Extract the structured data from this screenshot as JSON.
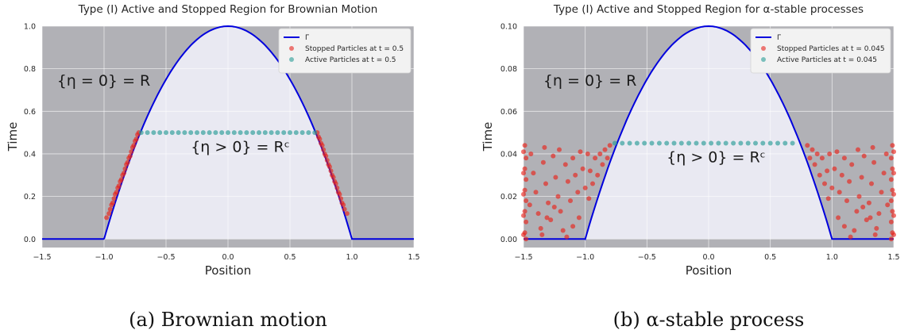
{
  "chart_data": [
    {
      "type": "scatter",
      "title": "Type (I) Active and Stopped Region for Brownian Motion",
      "xlabel": "Position",
      "ylabel": "Time",
      "xlim": [
        -1.5,
        1.5
      ],
      "ylim": [
        -0.04,
        1.0
      ],
      "x_ticks": [
        -1.5,
        -1.0,
        -0.5,
        0.0,
        0.5,
        1.0,
        1.5
      ],
      "x_tick_labels": [
        "−1.5",
        "−1.0",
        "−0.5",
        "0.0",
        "0.5",
        "1.0",
        "1.5"
      ],
      "y_ticks": [
        0.0,
        0.2,
        0.4,
        0.6,
        0.8,
        1.0
      ],
      "y_tick_labels": [
        "0.0",
        "0.2",
        "0.4",
        "0.6",
        "0.8",
        "1.0"
      ],
      "grid": true,
      "legend_position": "top-right",
      "boundary": {
        "name": "Γ",
        "color": "#0000dd",
        "peak": 1.0,
        "support": [
          -1.0,
          1.0
        ]
      },
      "series": [
        {
          "name": "Stopped Particles at t = 0.5",
          "color": "#e8231c",
          "t": 0.5,
          "points": [
            [
              -0.98,
              0.1
            ],
            [
              -0.96,
              0.12
            ],
            [
              -0.95,
              0.14
            ],
            [
              -0.94,
              0.16
            ],
            [
              -0.93,
              0.17
            ],
            [
              -0.92,
              0.19
            ],
            [
              -0.91,
              0.21
            ],
            [
              -0.9,
              0.22
            ],
            [
              -0.89,
              0.24
            ],
            [
              -0.88,
              0.25
            ],
            [
              -0.87,
              0.27
            ],
            [
              -0.86,
              0.28
            ],
            [
              -0.85,
              0.3
            ],
            [
              -0.84,
              0.31
            ],
            [
              -0.83,
              0.33
            ],
            [
              -0.82,
              0.35
            ],
            [
              -0.81,
              0.36
            ],
            [
              -0.8,
              0.38
            ],
            [
              -0.79,
              0.39
            ],
            [
              -0.78,
              0.41
            ],
            [
              -0.77,
              0.43
            ],
            [
              -0.76,
              0.44
            ],
            [
              -0.75,
              0.46
            ],
            [
              -0.74,
              0.47
            ],
            [
              -0.73,
              0.49
            ],
            [
              -0.72,
              0.5
            ],
            [
              0.72,
              0.5
            ],
            [
              0.73,
              0.48
            ],
            [
              0.74,
              0.47
            ],
            [
              0.75,
              0.45
            ],
            [
              0.76,
              0.44
            ],
            [
              0.77,
              0.42
            ],
            [
              0.78,
              0.4
            ],
            [
              0.79,
              0.39
            ],
            [
              0.8,
              0.37
            ],
            [
              0.81,
              0.35
            ],
            [
              0.82,
              0.34
            ],
            [
              0.83,
              0.32
            ],
            [
              0.84,
              0.3
            ],
            [
              0.85,
              0.29
            ],
            [
              0.86,
              0.27
            ],
            [
              0.87,
              0.26
            ],
            [
              0.88,
              0.24
            ],
            [
              0.89,
              0.22
            ],
            [
              0.9,
              0.21
            ],
            [
              0.91,
              0.19
            ],
            [
              0.92,
              0.17
            ],
            [
              0.93,
              0.16
            ],
            [
              0.94,
              0.14
            ],
            [
              0.96,
              0.12
            ]
          ]
        },
        {
          "name": "Active Particles at t = 0.5",
          "color": "#2a9d96",
          "t": 0.5,
          "points": [
            [
              -0.7,
              0.5
            ],
            [
              -0.65,
              0.5
            ],
            [
              -0.6,
              0.5
            ],
            [
              -0.55,
              0.5
            ],
            [
              -0.5,
              0.5
            ],
            [
              -0.45,
              0.5
            ],
            [
              -0.4,
              0.5
            ],
            [
              -0.35,
              0.5
            ],
            [
              -0.3,
              0.5
            ],
            [
              -0.25,
              0.5
            ],
            [
              -0.2,
              0.5
            ],
            [
              -0.15,
              0.5
            ],
            [
              -0.1,
              0.5
            ],
            [
              -0.05,
              0.5
            ],
            [
              0.0,
              0.5
            ],
            [
              0.05,
              0.5
            ],
            [
              0.1,
              0.5
            ],
            [
              0.15,
              0.5
            ],
            [
              0.2,
              0.5
            ],
            [
              0.25,
              0.5
            ],
            [
              0.3,
              0.5
            ],
            [
              0.35,
              0.5
            ],
            [
              0.4,
              0.5
            ],
            [
              0.45,
              0.5
            ],
            [
              0.5,
              0.5
            ],
            [
              0.55,
              0.5
            ],
            [
              0.6,
              0.5
            ],
            [
              0.65,
              0.5
            ],
            [
              0.7,
              0.5
            ]
          ]
        }
      ],
      "annotations": [
        {
          "text": "{η = 0} = R",
          "x": -1.38,
          "y": 0.72
        },
        {
          "text": "{η > 0} = Rᶜ",
          "x": -0.3,
          "y": 0.41
        }
      ],
      "caption": "(a) Brownian motion"
    },
    {
      "type": "scatter",
      "title": "Type (I) Active and Stopped Region for α-stable processes",
      "xlabel": "Position",
      "ylabel": "Time",
      "xlim": [
        -1.5,
        1.5
      ],
      "ylim": [
        -0.004,
        0.1
      ],
      "x_ticks": [
        -1.5,
        -1.0,
        -0.5,
        0.0,
        0.5,
        1.0,
        1.5
      ],
      "x_tick_labels": [
        "−1.5",
        "−1.0",
        "−0.5",
        "0.0",
        "0.5",
        "1.0",
        "1.5"
      ],
      "y_ticks": [
        0.0,
        0.02,
        0.04,
        0.06,
        0.08,
        0.1
      ],
      "y_tick_labels": [
        "0.00",
        "0.02",
        "0.04",
        "0.06",
        "0.08",
        "0.10"
      ],
      "grid": true,
      "legend_position": "top-right",
      "boundary": {
        "name": "Γ",
        "color": "#0000dd",
        "peak": 0.1,
        "support": [
          -1.0,
          1.0
        ]
      },
      "series": [
        {
          "name": "Stopped Particles at t = 0.045",
          "color": "#e8231c",
          "t": 0.045,
          "points": [
            [
              -1.49,
              0.044
            ],
            [
              -1.48,
              0.038
            ],
            [
              -1.49,
              0.033
            ],
            [
              -1.48,
              0.028
            ],
            [
              -1.49,
              0.023
            ],
            [
              -1.48,
              0.018
            ],
            [
              -1.49,
              0.013
            ],
            [
              -1.48,
              0.008
            ],
            [
              -1.49,
              0.003
            ],
            [
              -1.48,
              0.0
            ],
            [
              -1.5,
              0.041
            ],
            [
              -1.5,
              0.031
            ],
            [
              -1.5,
              0.021
            ],
            [
              -1.5,
              0.011
            ],
            [
              -1.5,
              0.002
            ],
            [
              -1.44,
              0.04
            ],
            [
              -1.42,
              0.031
            ],
            [
              -1.4,
              0.022
            ],
            [
              -1.38,
              0.012
            ],
            [
              -1.36,
              0.005
            ],
            [
              -1.34,
              0.036
            ],
            [
              -1.32,
              0.026
            ],
            [
              -1.3,
              0.017
            ],
            [
              -1.28,
              0.009
            ],
            [
              -1.26,
              0.039
            ],
            [
              -1.24,
              0.029
            ],
            [
              -1.22,
              0.02
            ],
            [
              -1.2,
              0.013
            ],
            [
              -1.18,
              0.004
            ],
            [
              -1.16,
              0.035
            ],
            [
              -1.14,
              0.027
            ],
            [
              -1.12,
              0.018
            ],
            [
              -1.1,
              0.038
            ],
            [
              -1.08,
              0.03
            ],
            [
              -1.06,
              0.022
            ],
            [
              -1.04,
              0.041
            ],
            [
              -1.02,
              0.033
            ],
            [
              -1.0,
              0.024
            ],
            [
              -0.98,
              0.04
            ],
            [
              -0.96,
              0.032
            ],
            [
              -0.94,
              0.026
            ],
            [
              -0.92,
              0.038
            ],
            [
              -0.9,
              0.03
            ],
            [
              -0.88,
              0.04
            ],
            [
              -0.86,
              0.035
            ],
            [
              -0.84,
              0.042
            ],
            [
              -0.82,
              0.038
            ],
            [
              -0.8,
              0.044
            ],
            [
              -1.35,
              0.002
            ],
            [
              -1.15,
              0.001
            ],
            [
              -1.25,
              0.015
            ],
            [
              -1.05,
              0.01
            ],
            [
              -1.33,
              0.043
            ],
            [
              -1.21,
              0.042
            ],
            [
              -1.45,
              0.016
            ],
            [
              -1.1,
              0.006
            ],
            [
              -0.97,
              0.019
            ],
            [
              -1.31,
              0.01
            ],
            [
              0.8,
              0.044
            ],
            [
              0.82,
              0.038
            ],
            [
              0.84,
              0.042
            ],
            [
              0.86,
              0.035
            ],
            [
              0.88,
              0.04
            ],
            [
              0.9,
              0.03
            ],
            [
              0.92,
              0.038
            ],
            [
              0.94,
              0.026
            ],
            [
              0.96,
              0.032
            ],
            [
              0.98,
              0.04
            ],
            [
              1.0,
              0.024
            ],
            [
              1.02,
              0.033
            ],
            [
              1.04,
              0.041
            ],
            [
              1.06,
              0.022
            ],
            [
              1.08,
              0.03
            ],
            [
              1.1,
              0.038
            ],
            [
              1.12,
              0.018
            ],
            [
              1.14,
              0.027
            ],
            [
              1.16,
              0.035
            ],
            [
              1.18,
              0.004
            ],
            [
              1.2,
              0.013
            ],
            [
              1.22,
              0.02
            ],
            [
              1.24,
              0.029
            ],
            [
              1.26,
              0.039
            ],
            [
              1.28,
              0.009
            ],
            [
              1.3,
              0.017
            ],
            [
              1.32,
              0.026
            ],
            [
              1.34,
              0.036
            ],
            [
              1.36,
              0.005
            ],
            [
              1.38,
              0.012
            ],
            [
              1.4,
              0.022
            ],
            [
              1.42,
              0.031
            ],
            [
              1.44,
              0.04
            ],
            [
              1.49,
              0.044
            ],
            [
              1.48,
              0.038
            ],
            [
              1.49,
              0.033
            ],
            [
              1.48,
              0.028
            ],
            [
              1.49,
              0.023
            ],
            [
              1.48,
              0.018
            ],
            [
              1.49,
              0.013
            ],
            [
              1.48,
              0.008
            ],
            [
              1.49,
              0.003
            ],
            [
              1.48,
              0.0
            ],
            [
              1.5,
              0.041
            ],
            [
              1.5,
              0.031
            ],
            [
              1.5,
              0.021
            ],
            [
              1.5,
              0.011
            ],
            [
              1.5,
              0.002
            ],
            [
              1.35,
              0.002
            ],
            [
              1.15,
              0.001
            ],
            [
              1.25,
              0.015
            ],
            [
              1.05,
              0.01
            ],
            [
              1.33,
              0.043
            ],
            [
              1.21,
              0.042
            ],
            [
              1.45,
              0.016
            ],
            [
              1.1,
              0.006
            ],
            [
              0.97,
              0.019
            ],
            [
              1.31,
              0.01
            ]
          ]
        },
        {
          "name": "Active Particles at t = 0.045",
          "color": "#2a9d96",
          "t": 0.045,
          "points": [
            [
              -0.76,
              0.045
            ],
            [
              -0.7,
              0.045
            ],
            [
              -0.64,
              0.045
            ],
            [
              -0.58,
              0.045
            ],
            [
              -0.52,
              0.045
            ],
            [
              -0.46,
              0.045
            ],
            [
              -0.4,
              0.045
            ],
            [
              -0.34,
              0.045
            ],
            [
              -0.28,
              0.045
            ],
            [
              -0.22,
              0.045
            ],
            [
              -0.16,
              0.045
            ],
            [
              -0.1,
              0.045
            ],
            [
              -0.04,
              0.045
            ],
            [
              0.02,
              0.045
            ],
            [
              0.08,
              0.045
            ],
            [
              0.14,
              0.045
            ],
            [
              0.2,
              0.045
            ],
            [
              0.26,
              0.045
            ],
            [
              0.32,
              0.045
            ],
            [
              0.38,
              0.045
            ],
            [
              0.44,
              0.045
            ],
            [
              0.5,
              0.045
            ],
            [
              0.56,
              0.045
            ],
            [
              0.62,
              0.045
            ],
            [
              0.68,
              0.045
            ]
          ]
        }
      ],
      "annotations": [
        {
          "text": "{η = 0} = R",
          "x": -1.34,
          "y": 0.072
        },
        {
          "text": "{η > 0} = Rᶜ",
          "x": -0.34,
          "y": 0.036
        }
      ],
      "caption": "(b) α-stable process"
    }
  ]
}
